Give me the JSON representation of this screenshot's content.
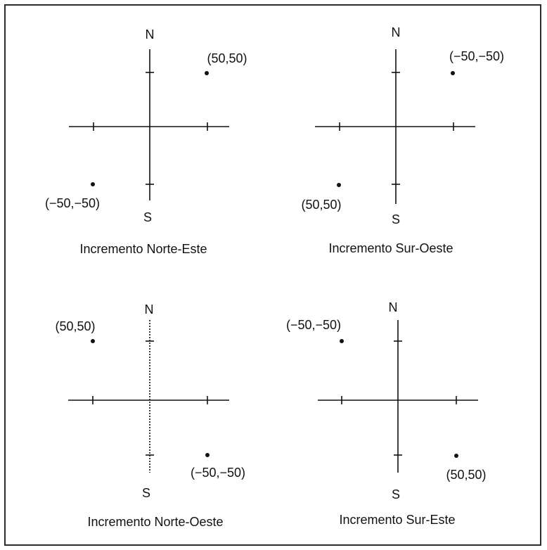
{
  "panels": [
    {
      "north": "N",
      "south": "S",
      "caption": "Incremento Norte-Este",
      "point_a_label": "(50,50)",
      "point_b_label": "(−50,−50)"
    },
    {
      "north": "N",
      "south": "S",
      "caption": "Incremento Sur-Oeste",
      "point_a_label": "(−50,−50)",
      "point_b_label": "(50,50)"
    },
    {
      "north": "N",
      "south": "S",
      "caption": "Incremento Norte-Oeste",
      "point_a_label": "(50,50)",
      "point_b_label": "(−50,−50)"
    },
    {
      "north": "N",
      "south": "S",
      "caption": "Incremento Sur-Este",
      "point_a_label": "(−50,−50)",
      "point_b_label": "(50,50)"
    }
  ]
}
